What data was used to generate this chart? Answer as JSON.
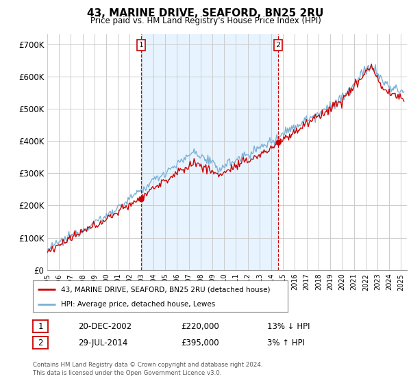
{
  "title": "43, MARINE DRIVE, SEAFORD, BN25 2RU",
  "subtitle": "Price paid vs. HM Land Registry's House Price Index (HPI)",
  "ylabel_ticks": [
    "£0",
    "£100K",
    "£200K",
    "£300K",
    "£400K",
    "£500K",
    "£600K",
    "£700K"
  ],
  "ytick_values": [
    0,
    100000,
    200000,
    300000,
    400000,
    500000,
    600000,
    700000
  ],
  "ylim": [
    0,
    730000
  ],
  "xlim_start": 1995.0,
  "xlim_end": 2025.5,
  "purchase1_x": 2002.97,
  "purchase1_y": 220000,
  "purchase2_x": 2014.57,
  "purchase2_y": 395000,
  "purchase1_label": "20-DEC-2002",
  "purchase1_price": "£220,000",
  "purchase1_hpi": "13% ↓ HPI",
  "purchase2_label": "29-JUL-2014",
  "purchase2_price": "£395,000",
  "purchase2_hpi": "3% ↑ HPI",
  "legend_line1": "43, MARINE DRIVE, SEAFORD, BN25 2RU (detached house)",
  "legend_line2": "HPI: Average price, detached house, Lewes",
  "footer1": "Contains HM Land Registry data © Crown copyright and database right 2024.",
  "footer2": "This data is licensed under the Open Government Licence v3.0.",
  "hpi_color": "#7ab0d4",
  "price_color": "#cc0000",
  "vline_color": "#cc0000",
  "shade_color": "#ddeeff",
  "background_color": "#ffffff",
  "grid_color": "#cccccc"
}
